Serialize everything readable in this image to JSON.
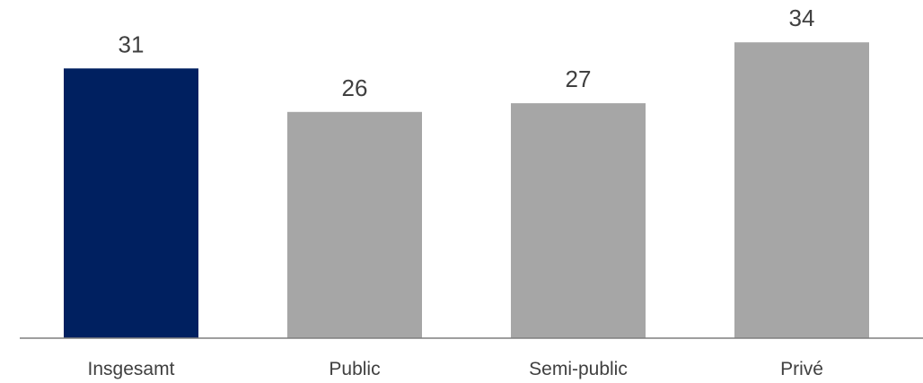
{
  "chart_data": {
    "type": "bar",
    "categories": [
      "Insgesamt",
      "Public",
      "Semi-public",
      "Privé"
    ],
    "values": [
      31,
      26,
      27,
      34
    ],
    "data_labels": [
      "31",
      "26",
      "27",
      "34"
    ],
    "bar_colors": [
      "#002060",
      "#a6a6a6",
      "#a6a6a6",
      "#a6a6a6"
    ],
    "axis_color": "#7f7f7f",
    "text_color": "#404040",
    "ylim": [
      0,
      34
    ],
    "grid": false,
    "legend": "none"
  }
}
